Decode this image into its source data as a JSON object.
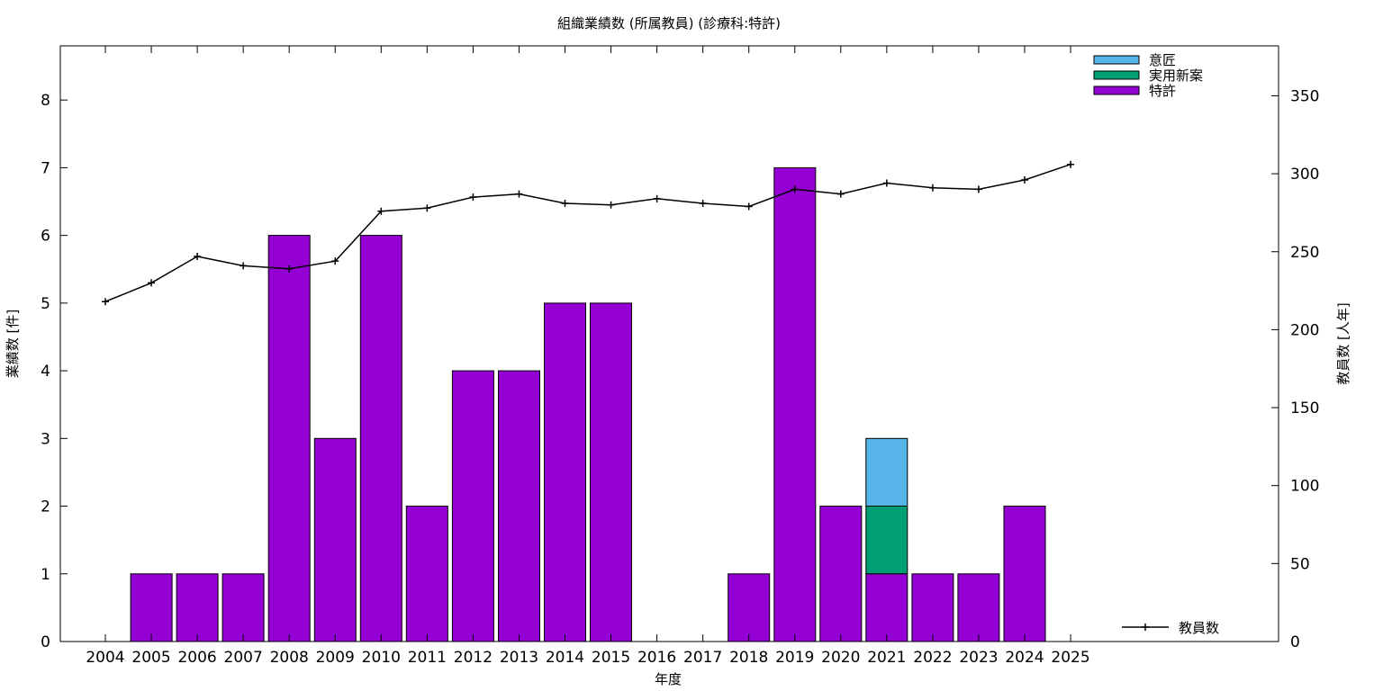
{
  "chart_data": {
    "type": "bar",
    "title": "組織業績数 (所属教員) (診療科:特許)",
    "xlabel": "年度",
    "ylabel": "業績数 [件]",
    "y2label": "教員数 [人年]",
    "ylim": [
      0,
      8.8
    ],
    "y2lim": [
      0,
      382
    ],
    "yticks": [
      0,
      1,
      2,
      3,
      4,
      5,
      6,
      7,
      8
    ],
    "y2ticks": [
      0,
      50,
      100,
      150,
      200,
      250,
      300,
      350
    ],
    "grid": false,
    "stacked": true,
    "categories": [
      "2004",
      "2005",
      "2006",
      "2007",
      "2008",
      "2009",
      "2010",
      "2011",
      "2012",
      "2013",
      "2014",
      "2015",
      "2016",
      "2017",
      "2018",
      "2019",
      "2020",
      "2021",
      "2022",
      "2023",
      "2024",
      "2025"
    ],
    "series": [
      {
        "name": "特許",
        "color": "#9400d3",
        "values": [
          0,
          1,
          1,
          1,
          6,
          3,
          6,
          2,
          4,
          4,
          5,
          5,
          0,
          0,
          1,
          7,
          2,
          1,
          1,
          1,
          2,
          0
        ]
      },
      {
        "name": "実用新案",
        "color": "#009e73",
        "values": [
          0,
          0,
          0,
          0,
          0,
          0,
          0,
          0,
          0,
          0,
          0,
          0,
          0,
          0,
          0,
          0,
          0,
          1,
          0,
          0,
          0,
          0
        ]
      },
      {
        "name": "意匠",
        "color": "#56b4e9",
        "values": [
          0,
          0,
          0,
          0,
          0,
          0,
          0,
          0,
          0,
          0,
          0,
          0,
          0,
          0,
          0,
          0,
          0,
          1,
          0,
          0,
          0,
          0
        ]
      }
    ],
    "line_series": {
      "name": "教員数",
      "axis": "right",
      "color": "#000000",
      "values": [
        218,
        230,
        247,
        241,
        239,
        244,
        276,
        278,
        285,
        287,
        281,
        280,
        284,
        281,
        279,
        290,
        287,
        294,
        291,
        290,
        296,
        306
      ]
    },
    "legend": {
      "bars_position": "top-right",
      "bars_order": [
        "意匠",
        "実用新案",
        "特許"
      ],
      "line_position": "bottom-right"
    }
  }
}
